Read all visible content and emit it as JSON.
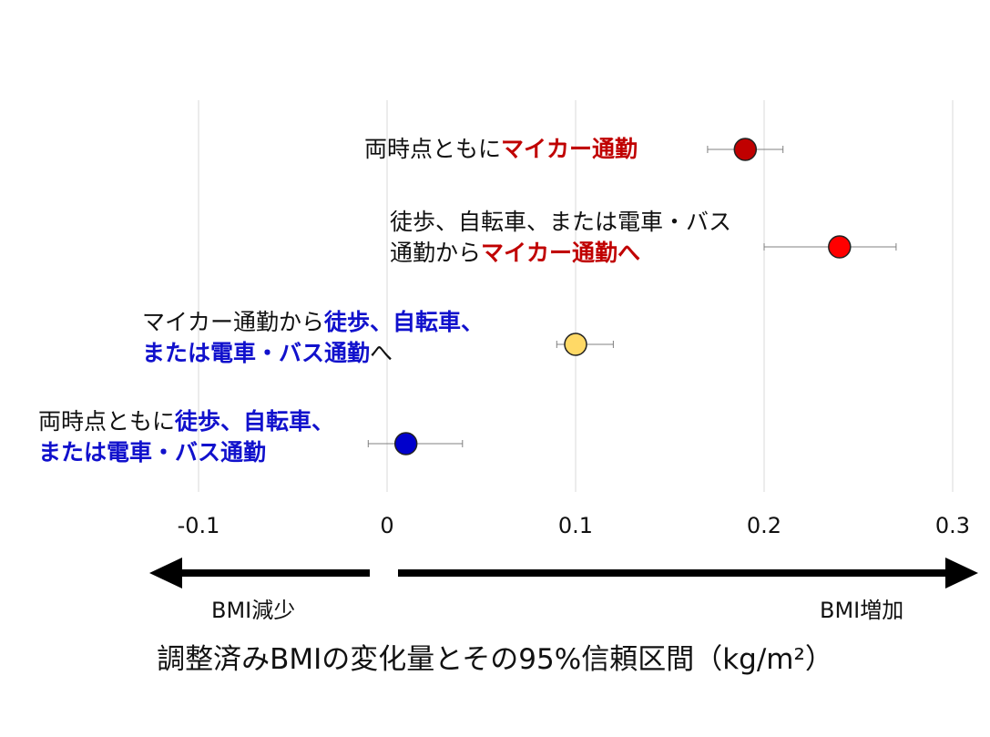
{
  "chart_data": {
    "type": "scatter",
    "subtype": "forest-plot",
    "xlim": [
      -0.1,
      0.3
    ],
    "xticks": [
      "-0.1",
      "0",
      "0.1",
      "0.2",
      "0.3"
    ],
    "grid": "vertical",
    "xlabel": "調整済みBMIの変化量とその95%信頼区間（kg/m²）",
    "direction_left": "BMI減少",
    "direction_right": "BMI増加",
    "points": [
      {
        "estimate": 0.19,
        "ci_low": 0.17,
        "ci_high": 0.21,
        "color": "#c00000"
      },
      {
        "estimate": 0.24,
        "ci_low": 0.2,
        "ci_high": 0.27,
        "color": "#ff0000"
      },
      {
        "estimate": 0.1,
        "ci_low": 0.09,
        "ci_high": 0.12,
        "color": "#ffd966"
      },
      {
        "estimate": 0.01,
        "ci_low": -0.01,
        "ci_high": 0.04,
        "color": "#0000cc"
      }
    ]
  },
  "labels": {
    "row1": {
      "a": "両時点ともに",
      "b": "マイカー通勤"
    },
    "row2": {
      "a": "徒歩、自転車、または電車・バス",
      "b": "通勤から",
      "c": "マイカー通勤へ"
    },
    "row3": {
      "a": "マイカー通勤から",
      "b": "徒歩、自転車、",
      "c": "または電車・バス通勤",
      "d": "へ"
    },
    "row4": {
      "a": "両時点ともに",
      "b": "徒歩、自転車、",
      "c": "または電車・バス通勤"
    }
  }
}
